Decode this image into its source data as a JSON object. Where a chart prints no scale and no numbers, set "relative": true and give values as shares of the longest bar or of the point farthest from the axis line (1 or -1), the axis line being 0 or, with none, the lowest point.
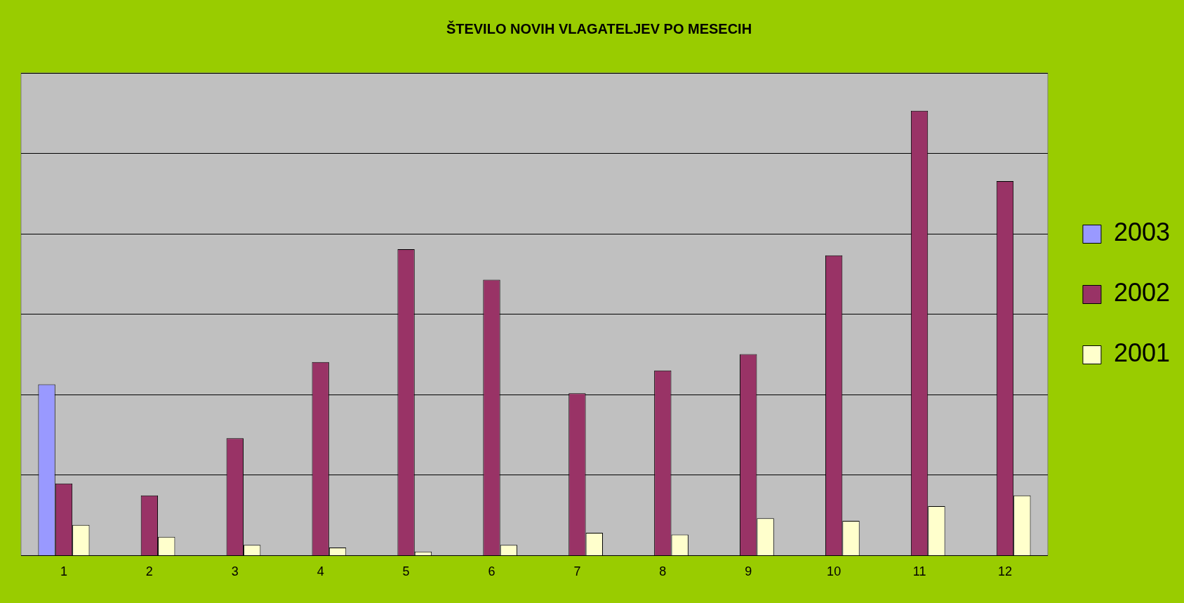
{
  "chart_data": {
    "type": "bar",
    "title": "ŠTEVILO NOVIH VLAGATELJEV PO MESECIH",
    "relative": true,
    "grid": "y",
    "legend": "right",
    "categories": [
      "1",
      "2",
      "3",
      "4",
      "5",
      "6",
      "7",
      "8",
      "9",
      "10",
      "11",
      "12"
    ],
    "series": [
      {
        "name": "2003",
        "color": "#9999ff",
        "values": [
          0.385,
          null,
          null,
          null,
          null,
          null,
          null,
          null,
          null,
          null,
          null,
          null
        ]
      },
      {
        "name": "2002",
        "color": "#993366",
        "values": [
          0.162,
          0.135,
          0.264,
          0.435,
          0.689,
          0.62,
          0.365,
          0.416,
          0.453,
          0.675,
          1,
          0.842
        ]
      },
      {
        "name": "2001",
        "color": "#ffffcc",
        "values": [
          0.069,
          0.042,
          0.024,
          0.018,
          0.009,
          0.024,
          0.051,
          0.047,
          0.084,
          0.078,
          0.111,
          0.135
        ]
      }
    ]
  }
}
